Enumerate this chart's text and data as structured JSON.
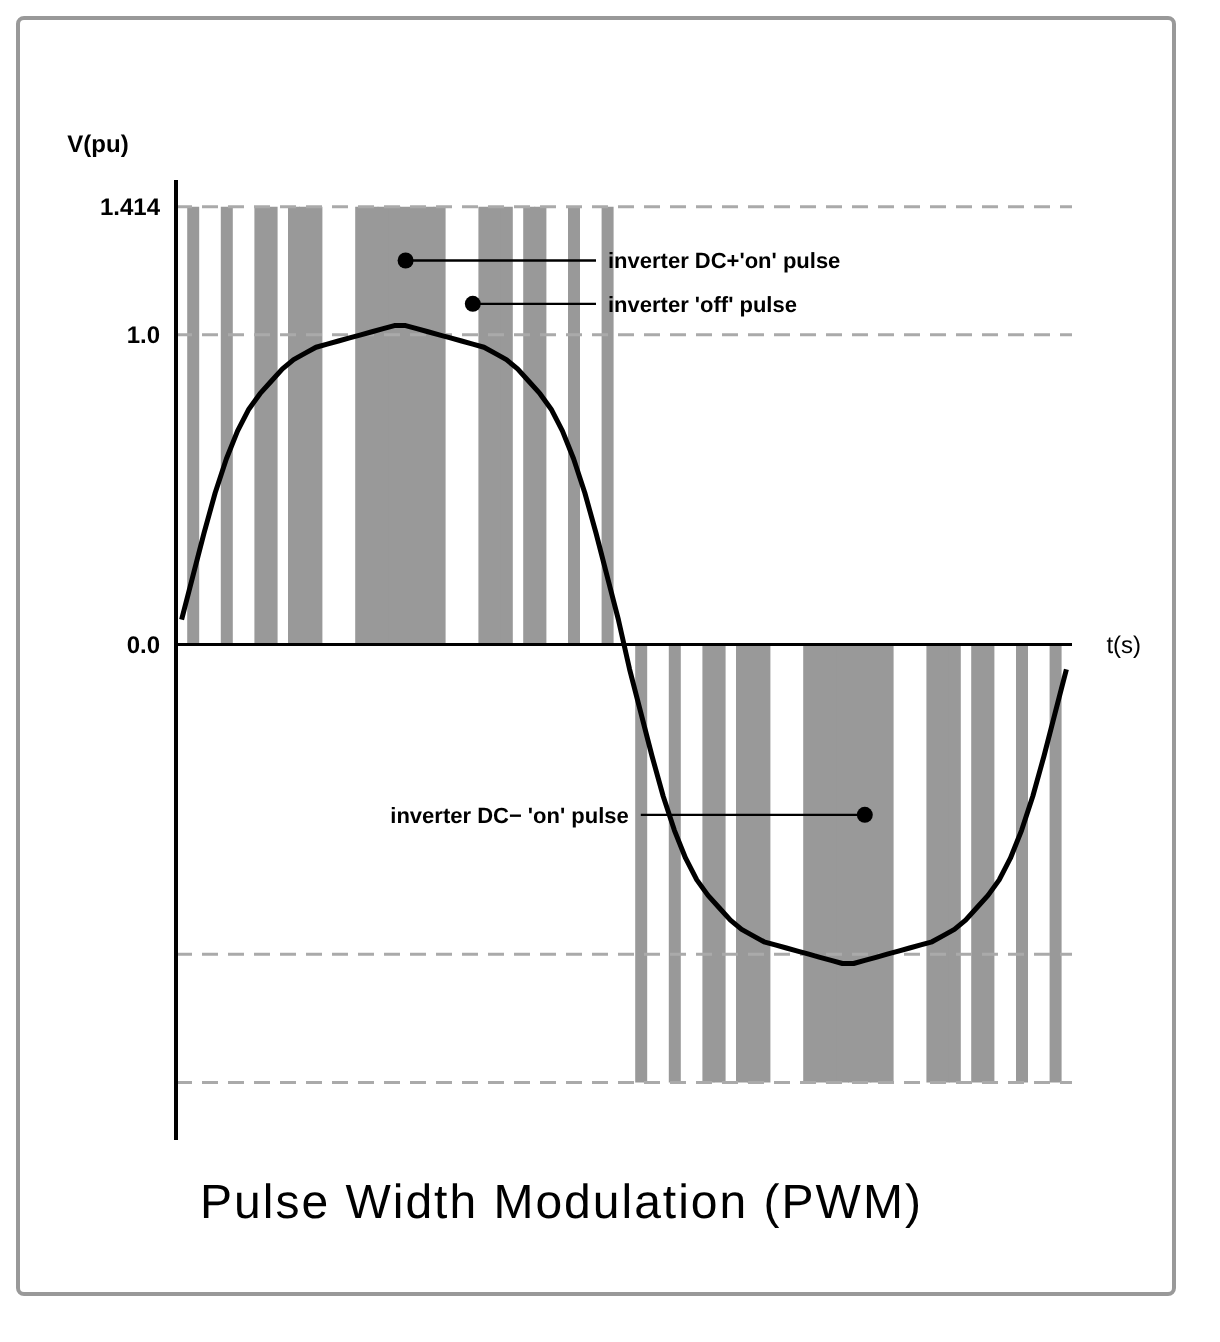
{
  "chart_data": {
    "type": "bar",
    "title": "Pulse Width Modulation (PWM)",
    "ylabel": "V(pu)",
    "xlabel": "t(s)",
    "categories": [
      null,
      null,
      null,
      null,
      null,
      null,
      null,
      null,
      null,
      null,
      null,
      null,
      null,
      null,
      null,
      null,
      null,
      null,
      null,
      null,
      null,
      null,
      null,
      null,
      null,
      null,
      null,
      null,
      null,
      null,
      null,
      null,
      null,
      null,
      null,
      null,
      null,
      null,
      null,
      null,
      null,
      null,
      null,
      null,
      null,
      null,
      null,
      null,
      null,
      null,
      null,
      null,
      null,
      null,
      null,
      null,
      null,
      null,
      null,
      null,
      null,
      null,
      null,
      null,
      null,
      null,
      null,
      null,
      null,
      null,
      null,
      null,
      null,
      null,
      null,
      null,
      null,
      null,
      null,
      null
    ],
    "series": [
      {
        "color": "#999999",
        "values": [
          null,
          1.414,
          null,
          null,
          1.414,
          null,
          null,
          1.414,
          1.414,
          null,
          1.414,
          1.414,
          1.414,
          null,
          null,
          null,
          1.414,
          1.414,
          1.414,
          1.414,
          1.414,
          1.414,
          1.414,
          1.414,
          null,
          null,
          null,
          1.414,
          1.414,
          1.414,
          null,
          1.414,
          1.414,
          null,
          null,
          1.414,
          null,
          null,
          1.414,
          null,
          null,
          -1.414,
          null,
          null,
          -1.414,
          null,
          null,
          -1.414,
          -1.414,
          null,
          -1.414,
          -1.414,
          -1.414,
          null,
          null,
          null,
          -1.414,
          -1.414,
          -1.414,
          -1.414,
          -1.414,
          -1.414,
          -1.414,
          -1.414,
          null,
          null,
          null,
          -1.414,
          -1.414,
          -1.414,
          null,
          -1.414,
          -1.414,
          null,
          null,
          -1.414,
          null,
          null,
          -1.414,
          null
        ]
      },
      {
        "type": "line",
        "color": "#000000",
        "values": [
          0.08,
          0.22,
          0.36,
          0.49,
          0.6,
          0.69,
          0.76,
          0.81,
          0.85,
          0.89,
          0.92,
          0.94,
          0.96,
          0.97,
          0.98,
          0.99,
          1.0,
          1.01,
          1.02,
          1.03,
          1.03,
          1.02,
          1.01,
          1.0,
          0.99,
          0.98,
          0.97,
          0.96,
          0.94,
          0.92,
          0.89,
          0.85,
          0.81,
          0.76,
          0.69,
          0.6,
          0.49,
          0.36,
          0.22,
          0.08,
          -0.08,
          -0.22,
          -0.36,
          -0.49,
          -0.6,
          -0.69,
          -0.76,
          -0.81,
          -0.85,
          -0.89,
          -0.92,
          -0.94,
          -0.96,
          -0.97,
          -0.98,
          -0.99,
          -1.0,
          -1.01,
          -1.02,
          -1.03,
          -1.03,
          -1.02,
          -1.01,
          -1.0,
          -0.99,
          -0.98,
          -0.97,
          -0.96,
          -0.94,
          -0.92,
          -0.89,
          -0.85,
          -0.81,
          -0.76,
          -0.69,
          -0.6,
          -0.49,
          -0.36,
          -0.22,
          -0.08
        ]
      }
    ],
    "ylim": [
      -1.6,
      1.5
    ],
    "yticks": [
      {
        "value": -1.414,
        "label": null
      },
      {
        "value": -1,
        "label": null
      },
      {
        "value": 0,
        "label": "0.0"
      },
      {
        "value": 1,
        "label": "1.0"
      },
      1.414
    ],
    "tick_labels": "y",
    "grid": false,
    "legend": false,
    "marker": "none",
    "line_style": "solid",
    "ref_lines": [
      {
        "axis": "y",
        "value": 0,
        "color": "#000000",
        "line_style": "solid"
      },
      {
        "axis": "y",
        "value": 1.414,
        "color": "#aaaaaa",
        "line_style": "dashed"
      },
      {
        "axis": "y",
        "value": 1,
        "color": "#aaaaaa",
        "line_style": "dashed"
      },
      {
        "axis": "y",
        "value": -1,
        "color": "#aaaaaa",
        "line_style": "dashed"
      },
      {
        "axis": "y",
        "value": -1.414,
        "color": "#aaaaaa",
        "line_style": "dashed"
      }
    ],
    "annotations": [
      "inverter DC+'on' pulse",
      "inverter 'off' pulse",
      "inverter DC− 'on' pulse"
    ]
  }
}
